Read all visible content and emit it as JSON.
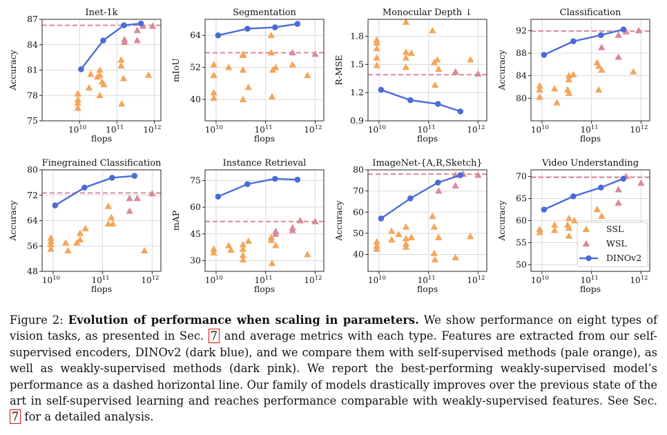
{
  "figure": {
    "legend": {
      "ssl": "SSL",
      "wsl": "WSL",
      "dino": "DINOv2"
    },
    "colors": {
      "ssl": "#f5a55a",
      "wsl": "#d98a97",
      "dino": "#4a6bd8",
      "baseline": "#d98a97",
      "grid": "#d9d9d9"
    }
  },
  "chart_data": [
    {
      "type": "scatter+line",
      "title": "Inet-1k",
      "xlabel": "flops",
      "ylabel": "Accuracy",
      "xscale": "log",
      "xlim": [
        1000000000.0,
        1500000000000.0
      ],
      "ylim": [
        75,
        87
      ],
      "yticks": [
        75,
        78,
        81,
        84,
        87
      ],
      "xticks": [
        "10^10",
        "10^11",
        "10^12"
      ],
      "baseline": 86.3,
      "dinov2": [
        [
          11000000000.0,
          81.1
        ],
        [
          43000000000.0,
          84.5
        ],
        [
          155000000000.0,
          86.3
        ],
        [
          440000000000.0,
          86.5
        ]
      ],
      "ssl": [
        [
          9000000000.0,
          76.5
        ],
        [
          9000000000.0,
          77.1
        ],
        [
          9000000000.0,
          77.5
        ],
        [
          9000000000.0,
          78.2
        ],
        [
          18000000000.0,
          78.9
        ],
        [
          20000000000.0,
          80.5
        ],
        [
          30000000000.0,
          80.2
        ],
        [
          35000000000.0,
          81.0
        ],
        [
          35000000000.0,
          80.4
        ],
        [
          35000000000.0,
          78.0
        ],
        [
          40000000000.0,
          79.6
        ],
        [
          45000000000.0,
          79.3
        ],
        [
          130000000000.0,
          82.2
        ],
        [
          130000000000.0,
          81.5
        ],
        [
          135000000000.0,
          77.0
        ],
        [
          150000000000.0,
          80.0
        ],
        [
          700000000000.0,
          80.4
        ]
      ],
      "wsl": [
        [
          160000000000.0,
          84.6
        ],
        [
          160000000000.0,
          84.3
        ],
        [
          350000000000.0,
          85.7
        ],
        [
          350000000000.0,
          84.5
        ],
        [
          500000000000.0,
          86.2
        ],
        [
          900000000000.0,
          86.2
        ]
      ]
    },
    {
      "type": "scatter+line",
      "title": "Segmentation",
      "xlabel": "flops",
      "ylabel": "mIoU",
      "xscale": "log",
      "xlim": [
        6000000000.0,
        1500000000000.0
      ],
      "ylim": [
        32,
        70
      ],
      "yticks": [
        40,
        52,
        64
      ],
      "xticks": [
        "10^10",
        "10^11",
        "10^12"
      ],
      "baseline": 57.5,
      "dinov2": [
        [
          11000000000.0,
          64.0
        ],
        [
          43000000000.0,
          66.5
        ],
        [
          155000000000.0,
          67.0
        ],
        [
          440000000000.0,
          68.3
        ]
      ],
      "ssl": [
        [
          9000000000.0,
          53.0
        ],
        [
          9000000000.0,
          49.0
        ],
        [
          9000000000.0,
          42.5
        ],
        [
          9000000000.0,
          40.5
        ],
        [
          18000000000.0,
          52.0
        ],
        [
          35000000000.0,
          56.5
        ],
        [
          35000000000.0,
          57.0
        ],
        [
          35000000000.0,
          51.0
        ],
        [
          35000000000.0,
          40.0
        ],
        [
          45000000000.0,
          44.5
        ],
        [
          130000000000.0,
          64.0
        ],
        [
          130000000000.0,
          57.5
        ],
        [
          140000000000.0,
          51.0
        ],
        [
          135000000000.0,
          41.0
        ],
        [
          160000000000.0,
          52.0
        ],
        [
          350000000000.0,
          53.0
        ],
        [
          700000000000.0,
          49.0
        ]
      ],
      "wsl": [
        [
          350000000000.0,
          57.5
        ],
        [
          1000000000000.0,
          57.0
        ]
      ]
    },
    {
      "type": "scatter+line",
      "title": "Monocular Depth ↓",
      "xlabel": "flops",
      "ylabel": "R-MSE",
      "xscale": "log",
      "xlim": [
        6000000000.0,
        1500000000000.0
      ],
      "ylim": [
        0.9,
        1.98
      ],
      "yticks": [
        0.9,
        1.2,
        1.5,
        1.8
      ],
      "xticks": [
        "10^10",
        "10^11",
        "10^12"
      ],
      "baseline": 1.39,
      "dinov2": [
        [
          11000000000.0,
          1.23
        ],
        [
          43000000000.0,
          1.12
        ],
        [
          155000000000.0,
          1.08
        ],
        [
          440000000000.0,
          1.0
        ]
      ],
      "ssl": [
        [
          9000000000.0,
          1.76
        ],
        [
          9000000000.0,
          1.73
        ],
        [
          9000000000.0,
          1.67
        ],
        [
          9000000000.0,
          1.57
        ],
        [
          9000000000.0,
          1.49
        ],
        [
          35000000000.0,
          1.95
        ],
        [
          35000000000.0,
          1.63
        ],
        [
          35000000000.0,
          1.57
        ],
        [
          35000000000.0,
          1.47
        ],
        [
          45000000000.0,
          1.62
        ],
        [
          120000000000.0,
          1.86
        ],
        [
          130000000000.0,
          1.52
        ],
        [
          135000000000.0,
          1.28
        ],
        [
          150000000000.0,
          1.55
        ],
        [
          160000000000.0,
          1.45
        ],
        [
          350000000000.0,
          1.42
        ],
        [
          700000000000.0,
          1.55
        ]
      ],
      "wsl": [
        [
          350000000000.0,
          1.42
        ],
        [
          1000000000000.0,
          1.4
        ]
      ]
    },
    {
      "type": "scatter+line",
      "title": "Classification",
      "xlabel": "flops",
      "ylabel": "Accuracy",
      "xscale": "log",
      "xlim": [
        6000000000.0,
        1500000000000.0
      ],
      "ylim": [
        76,
        94
      ],
      "yticks": [
        80,
        84,
        88,
        92
      ],
      "xticks": [
        "10^10",
        "10^11",
        "10^12"
      ],
      "baseline": 91.9,
      "dinov2": [
        [
          11000000000.0,
          87.7
        ],
        [
          43000000000.0,
          90.1
        ],
        [
          155000000000.0,
          91.2
        ],
        [
          440000000000.0,
          92.2
        ]
      ],
      "ssl": [
        [
          9000000000.0,
          82.2
        ],
        [
          9000000000.0,
          81.5
        ],
        [
          9000000000.0,
          80.2
        ],
        [
          18000000000.0,
          81.7
        ],
        [
          20000000000.0,
          79.2
        ],
        [
          33000000000.0,
          81.5
        ],
        [
          35000000000.0,
          84.0
        ],
        [
          35000000000.0,
          83.3
        ],
        [
          35000000000.0,
          80.9
        ],
        [
          43000000000.0,
          84.2
        ],
        [
          130000000000.0,
          86.3
        ],
        [
          140000000000.0,
          85.7
        ],
        [
          140000000000.0,
          81.5
        ],
        [
          160000000000.0,
          85.0
        ],
        [
          700000000000.0,
          84.7
        ]
      ],
      "wsl": [
        [
          160000000000.0,
          89.0
        ],
        [
          350000000000.0,
          91.2
        ],
        [
          350000000000.0,
          87.3
        ],
        [
          500000000000.0,
          91.8
        ],
        [
          900000000000.0,
          92.0
        ]
      ]
    },
    {
      "type": "scatter+line",
      "title": "Finegrained Classification",
      "xlabel": "flops",
      "ylabel": "Accuracy",
      "xscale": "log",
      "xlim": [
        6000000000.0,
        1500000000000.0
      ],
      "ylim": [
        48,
        80
      ],
      "yticks": [
        48,
        56,
        64,
        72,
        80
      ],
      "xticks": [
        "10^10",
        "10^11",
        "10^12"
      ],
      "baseline": 72.7,
      "dinov2": [
        [
          11000000000.0,
          68.8
        ],
        [
          43000000000.0,
          74.4
        ],
        [
          155000000000.0,
          77.5
        ],
        [
          440000000000.0,
          78.1
        ]
      ],
      "ssl": [
        [
          9000000000.0,
          58.5
        ],
        [
          9000000000.0,
          57.5
        ],
        [
          9000000000.0,
          56.5
        ],
        [
          9000000000.0,
          55.0
        ],
        [
          18000000000.0,
          57.0
        ],
        [
          20000000000.0,
          54.5
        ],
        [
          30000000000.0,
          57.0
        ],
        [
          35000000000.0,
          60.0
        ],
        [
          35000000000.0,
          58.0
        ],
        [
          45000000000.0,
          61.5
        ],
        [
          130000000000.0,
          68.5
        ],
        [
          130000000000.0,
          63.0
        ],
        [
          150000000000.0,
          65.0
        ],
        [
          160000000000.0,
          63.0
        ],
        [
          700000000000.0,
          54.5
        ]
      ],
      "wsl": [
        [
          350000000000.0,
          71.0
        ],
        [
          350000000000.0,
          67.0
        ],
        [
          500000000000.0,
          71.0
        ],
        [
          1000000000000.0,
          72.5
        ]
      ]
    },
    {
      "type": "scatter+line",
      "title": "Instance Retrieval",
      "xlabel": "flops",
      "ylabel": "mAP",
      "xscale": "log",
      "xlim": [
        6000000000.0,
        1500000000000.0
      ],
      "ylim": [
        24,
        81
      ],
      "yticks": [
        30,
        45,
        60,
        75
      ],
      "xticks": [
        "10^10",
        "10^11",
        "10^12"
      ],
      "baseline": 52.0,
      "dinov2": [
        [
          11000000000.0,
          66.0
        ],
        [
          43000000000.0,
          73.0
        ],
        [
          155000000000.0,
          76.0
        ],
        [
          440000000000.0,
          75.5
        ]
      ],
      "ssl": [
        [
          9000000000.0,
          36.5
        ],
        [
          9000000000.0,
          34.5
        ],
        [
          18000000000.0,
          38.5
        ],
        [
          20000000000.0,
          36.0
        ],
        [
          35000000000.0,
          39.0
        ],
        [
          35000000000.0,
          36.5
        ],
        [
          35000000000.0,
          33.0
        ],
        [
          35000000000.0,
          30.5
        ],
        [
          45000000000.0,
          41.0
        ],
        [
          130000000000.0,
          43.0
        ],
        [
          130000000000.0,
          41.5
        ],
        [
          135000000000.0,
          28.5
        ],
        [
          160000000000.0,
          38.5
        ],
        [
          700000000000.0,
          33.5
        ]
      ],
      "wsl": [
        [
          160000000000.0,
          45.0
        ],
        [
          160000000000.0,
          46.5
        ],
        [
          350000000000.0,
          48.5
        ],
        [
          350000000000.0,
          47.0
        ],
        [
          500000000000.0,
          52.5
        ],
        [
          1000000000000.0,
          52.0
        ]
      ]
    },
    {
      "type": "scatter+line",
      "title": "ImageNet-{A,R,Sketch}",
      "xlabel": "flops",
      "ylabel": "Accuracy",
      "xscale": "log",
      "xlim": [
        6000000000.0,
        1500000000000.0
      ],
      "ylim": [
        32,
        80
      ],
      "yticks": [
        40,
        50,
        60,
        70,
        80
      ],
      "xticks": [
        "10^10",
        "10^11",
        "10^12"
      ],
      "baseline": 78.0,
      "dinov2": [
        [
          11000000000.0,
          57.0
        ],
        [
          43000000000.0,
          66.5
        ],
        [
          155000000000.0,
          74.0
        ],
        [
          440000000000.0,
          77.5
        ]
      ],
      "ssl": [
        [
          9000000000.0,
          46.0
        ],
        [
          9000000000.0,
          44.0
        ],
        [
          9000000000.0,
          42.5
        ],
        [
          18000000000.0,
          51.0
        ],
        [
          18000000000.0,
          47.0
        ],
        [
          25000000000.0,
          49.5
        ],
        [
          35000000000.0,
          53.0
        ],
        [
          35000000000.0,
          47.5
        ],
        [
          35000000000.0,
          45.0
        ],
        [
          35000000000.0,
          43.5
        ],
        [
          45000000000.0,
          48.0
        ],
        [
          120000000000.0,
          58.0
        ],
        [
          130000000000.0,
          53.0
        ],
        [
          130000000000.0,
          40.5
        ],
        [
          135000000000.0,
          37.5
        ],
        [
          160000000000.0,
          48.0
        ],
        [
          350000000000.0,
          38.5
        ],
        [
          700000000000.0,
          48.5
        ]
      ],
      "wsl": [
        [
          160000000000.0,
          70.0
        ],
        [
          350000000000.0,
          77.5
        ],
        [
          350000000000.0,
          72.5
        ],
        [
          500000000000.0,
          78.0
        ],
        [
          1000000000000.0,
          77.5
        ]
      ]
    },
    {
      "type": "scatter+line",
      "title": "Video Understanding",
      "xlabel": "flops",
      "ylabel": "Accuracy",
      "xscale": "log",
      "xlim": [
        6000000000.0,
        1500000000000.0
      ],
      "ylim": [
        48.5,
        71.5
      ],
      "yticks": [
        50,
        55,
        60,
        65,
        70
      ],
      "xticks": [
        "10^10",
        "10^11",
        "10^12"
      ],
      "baseline": 69.8,
      "dinov2": [
        [
          11000000000.0,
          62.5
        ],
        [
          43000000000.0,
          65.5
        ],
        [
          155000000000.0,
          67.5
        ],
        [
          440000000000.0,
          69.5
        ]
      ],
      "ssl": [
        [
          9000000000.0,
          58.0
        ],
        [
          9000000000.0,
          57.3
        ],
        [
          18000000000.0,
          59.0
        ],
        [
          18000000000.0,
          57.8
        ],
        [
          33000000000.0,
          59.0
        ],
        [
          35000000000.0,
          60.5
        ],
        [
          35000000000.0,
          58.3
        ],
        [
          35000000000.0,
          56.5
        ],
        [
          45000000000.0,
          60.0
        ],
        [
          130000000000.0,
          62.5
        ],
        [
          130000000000.0,
          59.0
        ],
        [
          160000000000.0,
          61.0
        ]
      ],
      "wsl": [
        [
          350000000000.0,
          67.0
        ],
        [
          350000000000.0,
          64.0
        ],
        [
          500000000000.0,
          70.0
        ],
        [
          1000000000000.0,
          68.5
        ]
      ]
    }
  ],
  "caption": {
    "label": "Figure 2:",
    "title": "Evolution of performance when scaling in parameters.",
    "text_1": "We show performance on eight types of vision tasks, as presented in Sec.",
    "ref_1": "7",
    "text_2": "and average metrics with each type. Features are extracted from our self-supervised encoders, DINOv2 (dark blue), and we compare them with self-supervised methods (pale orange), as well as weakly-supervised methods (dark pink). We report the best-performing weakly-supervised model’s performance as a dashed horizontal line. Our family of models drastically improves over the previous state of the art in self-supervised learning and reaches performance comparable with weakly-supervised features. See Sec.",
    "ref_2": "7",
    "text_3": "for a detailed analysis."
  }
}
